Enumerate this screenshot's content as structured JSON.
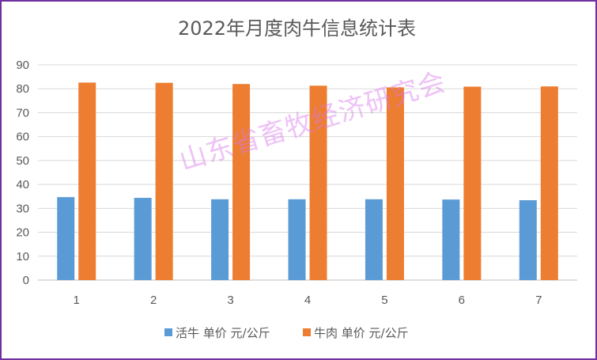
{
  "chart_data": {
    "type": "bar",
    "title": "2022年月度肉牛信息统计表",
    "categories": [
      "1",
      "2",
      "3",
      "4",
      "5",
      "6",
      "7"
    ],
    "series": [
      {
        "name": "活牛 单价 元/公斤",
        "color": "#5b9bd5",
        "values": [
          34.7,
          34.4,
          33.8,
          33.8,
          33.8,
          33.7,
          33.4
        ]
      },
      {
        "name": "牛肉 单价 元/公斤",
        "color": "#ed7d31",
        "values": [
          82.6,
          82.5,
          82.0,
          81.3,
          80.6,
          80.9,
          81.0
        ]
      }
    ],
    "ylim": [
      0,
      90
    ],
    "yticks": [
      0,
      10,
      20,
      30,
      40,
      50,
      60,
      70,
      80,
      90
    ],
    "grid": true,
    "legend": "bottom"
  },
  "watermark": "山东省畜牧经济研究会",
  "frame_color": "#7030a0"
}
